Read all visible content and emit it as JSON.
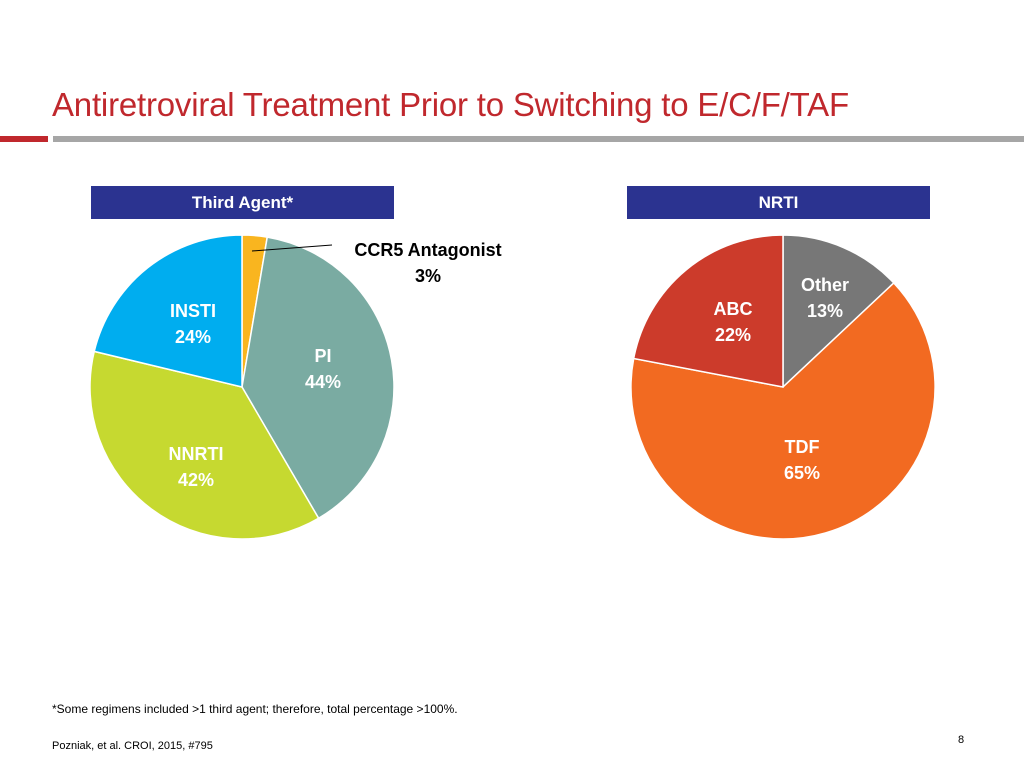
{
  "slide": {
    "title": "Antiretroviral Treatment Prior to Switching to E/C/F/TAF",
    "footnote": "*Some regimens included >1 third agent; therefore, total percentage >100%.",
    "citation": "Pozniak, et al. CROI, 2015, #795",
    "page_number": "8"
  },
  "colors": {
    "title": "#c0282d",
    "header_bg": "#2b3390",
    "rule_gray": "#a6a6a6"
  },
  "chart_data": [
    {
      "type": "pie",
      "title": "Third Agent*",
      "slices": [
        {
          "label": "CCR5 Antagonist",
          "value": 3,
          "display": "3%",
          "color": "#f9b51f",
          "label_color": "#000000",
          "callout": true
        },
        {
          "label": "PI",
          "value": 44,
          "display": "44%",
          "color": "#7aaba2",
          "label_color": "#ffffff"
        },
        {
          "label": "NNRTI",
          "value": 42,
          "display": "42%",
          "color": "#c6d930",
          "label_color": "#ffffff"
        },
        {
          "label": "INSTI",
          "value": 24,
          "display": "24%",
          "color": "#00adef",
          "label_color": "#ffffff"
        }
      ]
    },
    {
      "type": "pie",
      "title": "NRTI",
      "slices": [
        {
          "label": "Other",
          "value": 13,
          "display": "13%",
          "color": "#777777",
          "label_color": "#ffffff"
        },
        {
          "label": "TDF",
          "value": 65,
          "display": "65%",
          "color": "#f26a21",
          "label_color": "#ffffff"
        },
        {
          "label": "ABC",
          "value": 22,
          "display": "22%",
          "color": "#cc3b2b",
          "label_color": "#ffffff"
        }
      ]
    }
  ]
}
